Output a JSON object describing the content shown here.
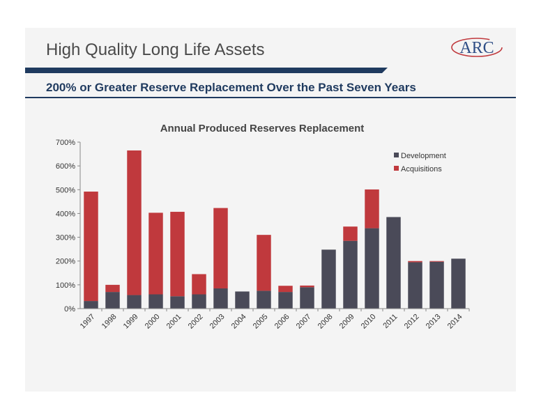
{
  "header": {
    "title": "High Quality Long Life Assets",
    "logo_text": "ARC",
    "subtitle": "200% or Greater Reserve Replacement Over the Past Seven Years"
  },
  "colors": {
    "development": "#4a4a58",
    "acquisitions": "#c0393d",
    "navy": "#1f3a5f",
    "logo_blue": "#2f4e86"
  },
  "chart_data": {
    "type": "bar",
    "stacked": true,
    "title": "Annual Produced Reserves Replacement",
    "xlabel": "",
    "ylabel": "",
    "ylim": [
      0,
      700
    ],
    "y_ticks": [
      0,
      100,
      200,
      300,
      400,
      500,
      600,
      700
    ],
    "y_tick_labels": [
      "0%",
      "100%",
      "200%",
      "300%",
      "400%",
      "500%",
      "600%",
      "700%"
    ],
    "legend_position": "top-right",
    "categories": [
      "1997",
      "1998",
      "1999",
      "2000",
      "2001",
      "2002",
      "2003",
      "2004",
      "2005",
      "2006",
      "2007",
      "2008",
      "2009",
      "2010",
      "2011",
      "2012",
      "2013",
      "2014"
    ],
    "series": [
      {
        "name": "Development",
        "values": [
          32,
          70,
          57,
          60,
          52,
          60,
          85,
          72,
          75,
          70,
          90,
          248,
          285,
          338,
          385,
          195,
          197,
          210
        ]
      },
      {
        "name": "Acquisitions",
        "values": [
          460,
          30,
          608,
          343,
          355,
          85,
          338,
          0,
          235,
          26,
          7,
          0,
          60,
          163,
          0,
          5,
          3,
          0
        ]
      }
    ]
  }
}
